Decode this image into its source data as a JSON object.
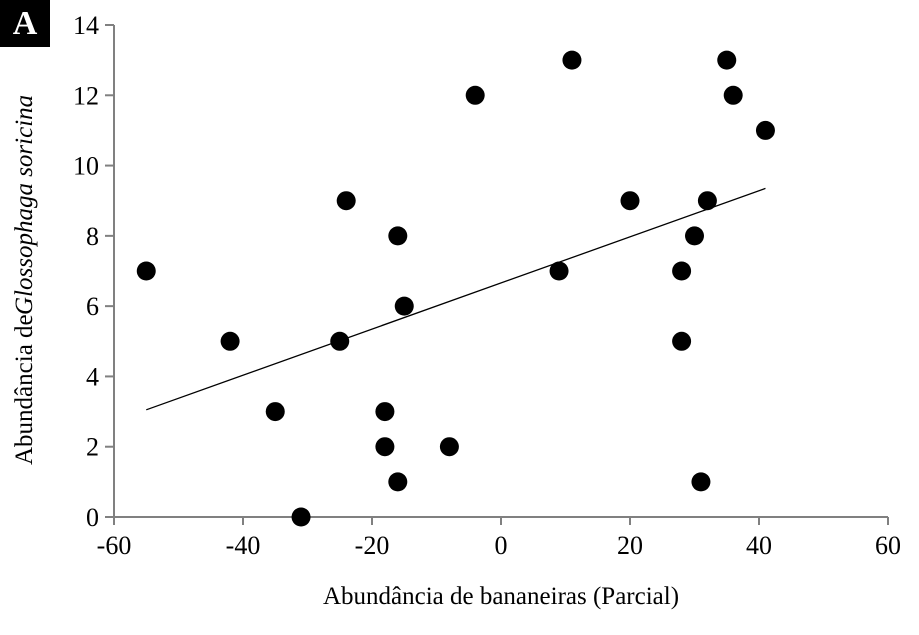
{
  "panel": {
    "label": "A"
  },
  "chart_data": {
    "type": "scatter",
    "title": "",
    "xlabel": "Abundância de bananeiras (Parcial)",
    "ylabel": "Abundância de Glossophaga soricina",
    "ylabel_prefix": "Abundância de ",
    "ylabel_species": "Glossophaga soricina",
    "xlim": [
      -60,
      60
    ],
    "ylim": [
      0,
      14
    ],
    "xticks": [
      -60,
      -40,
      -20,
      0,
      20,
      40,
      60
    ],
    "yticks": [
      0,
      2,
      4,
      6,
      8,
      10,
      12,
      14
    ],
    "grid": false,
    "legend": false,
    "points": [
      [
        -55,
        7
      ],
      [
        -42,
        5
      ],
      [
        -35,
        3
      ],
      [
        -31,
        0
      ],
      [
        -25,
        5
      ],
      [
        -24,
        9
      ],
      [
        -18,
        3
      ],
      [
        -18,
        2
      ],
      [
        -16,
        8
      ],
      [
        -16,
        1
      ],
      [
        -15,
        6
      ],
      [
        -8,
        2
      ],
      [
        -4,
        12
      ],
      [
        9,
        7
      ],
      [
        11,
        13
      ],
      [
        20,
        9
      ],
      [
        28,
        5
      ],
      [
        28,
        7
      ],
      [
        30,
        8
      ],
      [
        31,
        1
      ],
      [
        32,
        9
      ],
      [
        35,
        13
      ],
      [
        36,
        12
      ],
      [
        41,
        11
      ]
    ],
    "trendline": {
      "x1": -55,
      "y1": 3.05,
      "x2": 41,
      "y2": 9.35
    },
    "colors": {
      "marker": "#000000",
      "trendline": "#000000",
      "axis": "#808080",
      "tick_label": "#000000"
    },
    "marker_radius": 9.5
  }
}
